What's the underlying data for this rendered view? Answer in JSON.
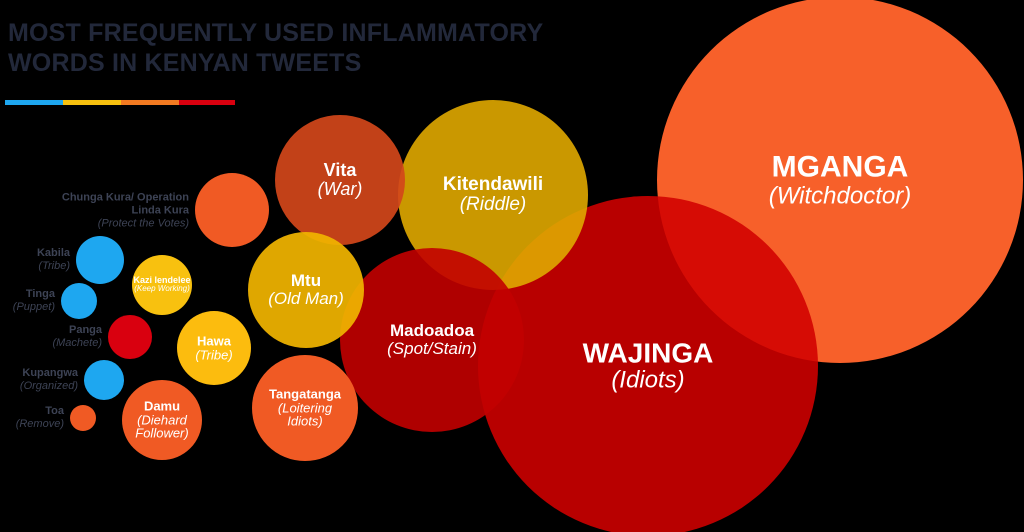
{
  "header": {
    "title": "MOST FREQUENTLY USED INFLAMMATORY WORDS IN KENYAN TWEETS"
  },
  "nodes": [
    {
      "word": "MGANGA",
      "translation": "(Witchdoctor)"
    },
    {
      "word": "WAJINGA",
      "translation": "(Idiots)"
    },
    {
      "word": "Kitendawili",
      "translation": "(Riddle)"
    },
    {
      "word": "Vita",
      "translation": "(War)"
    },
    {
      "word": "Madoadoa",
      "translation": "(Spot/Stain)"
    },
    {
      "word": "Mtu",
      "translation": "(Old Man)"
    },
    {
      "word": "Tangatanga",
      "translation": "(Loitering Idiots)"
    },
    {
      "word": "Chunga Kura/ Operation Linda Kura",
      "translation": "(Protect the Votes)"
    },
    {
      "word": "Hawa",
      "translation": "(Tribe)"
    },
    {
      "word": "Damu",
      "translation": "(Diehard Follower)"
    },
    {
      "word": "Kazi lendelee",
      "translation": "(Keep Working)"
    },
    {
      "word": "Kabila",
      "translation": "(Tribe)"
    },
    {
      "word": "Tinga",
      "translation": "(Puppet)"
    },
    {
      "word": "Panga",
      "translation": "(Machete)"
    },
    {
      "word": "Kupangwa",
      "translation": "(Organized)"
    },
    {
      "word": "Toa",
      "translation": "(Remove)"
    }
  ]
}
